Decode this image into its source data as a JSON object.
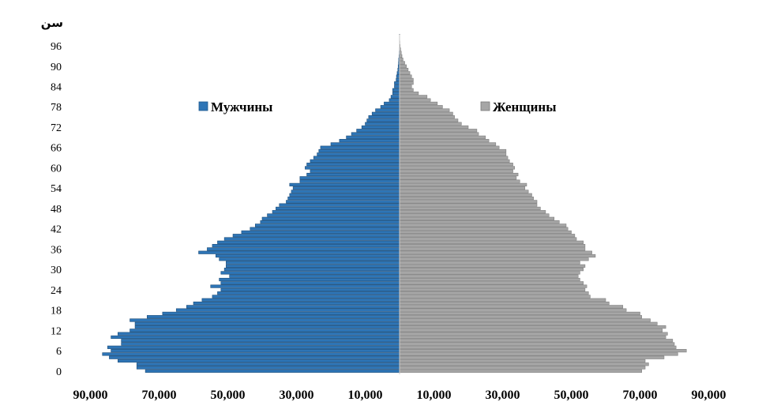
{
  "chart_data": {
    "type": "bar",
    "orientation": "horizontal-pyramid",
    "ylabel": "سن",
    "x_tick_labels": [
      "90,000",
      "70,000",
      "50,000",
      "30,000",
      "10,000",
      "10,000",
      "30,000",
      "50,000",
      "70,000",
      "90,000"
    ],
    "x_tick_values": [
      -90000,
      -70000,
      -50000,
      -30000,
      -10000,
      10000,
      30000,
      50000,
      70000,
      90000
    ],
    "y_tick_labels": [
      "0",
      "6",
      "12",
      "18",
      "24",
      "30",
      "36",
      "42",
      "48",
      "54",
      "60",
      "66",
      "72",
      "78",
      "84",
      "90",
      "96"
    ],
    "xlim": [
      -92000,
      92000
    ],
    "ylim": [
      0,
      100
    ],
    "legend_position": "upper-middle",
    "grid": false,
    "series": [
      {
        "name": "Мужчины",
        "color": "#2E75B6",
        "age": [
          0,
          1,
          2,
          3,
          4,
          5,
          6,
          7,
          8,
          9,
          10,
          11,
          12,
          13,
          14,
          15,
          16,
          17,
          18,
          19,
          20,
          21,
          22,
          23,
          24,
          25,
          26,
          27,
          28,
          29,
          30,
          31,
          32,
          33,
          34,
          35,
          36,
          37,
          38,
          39,
          40,
          41,
          42,
          43,
          44,
          45,
          46,
          47,
          48,
          49,
          50,
          51,
          52,
          53,
          54,
          55,
          56,
          57,
          58,
          59,
          60,
          61,
          62,
          63,
          64,
          65,
          66,
          67,
          68,
          69,
          70,
          71,
          72,
          73,
          74,
          75,
          76,
          77,
          78,
          79,
          80,
          81,
          82,
          83,
          84,
          85,
          86,
          87,
          88,
          89,
          90,
          91,
          92,
          93,
          94,
          95,
          96,
          97,
          98,
          99
        ],
        "values": [
          74000,
          76500,
          76500,
          82000,
          84500,
          86500,
          84000,
          85000,
          81000,
          81000,
          84000,
          82000,
          78500,
          77000,
          77000,
          78500,
          73500,
          69000,
          65000,
          62000,
          60000,
          57500,
          54500,
          53000,
          52000,
          55000,
          52000,
          52500,
          49500,
          52000,
          51000,
          50500,
          50500,
          52500,
          53500,
          58500,
          56000,
          54500,
          53000,
          51000,
          48500,
          46000,
          43500,
          42000,
          40500,
          40000,
          38500,
          37000,
          36000,
          35000,
          33000,
          32500,
          32000,
          31500,
          31000,
          32000,
          29000,
          29000,
          27000,
          26000,
          27500,
          27000,
          26000,
          25000,
          24000,
          23500,
          23000,
          20000,
          17500,
          15500,
          14000,
          12500,
          11000,
          10000,
          9500,
          9000,
          8000,
          7000,
          5500,
          4500,
          3000,
          2500,
          2000,
          2000,
          1500,
          1500,
          1000,
          900,
          700,
          500,
          400,
          300,
          250,
          150,
          100,
          60,
          30,
          20,
          10,
          5
        ],
        "values_note": "values are negative-direction (left) in the chart"
      },
      {
        "name": "Женщины",
        "color": "#A6A6A6",
        "age": [
          0,
          1,
          2,
          3,
          4,
          5,
          6,
          7,
          8,
          9,
          10,
          11,
          12,
          13,
          14,
          15,
          16,
          17,
          18,
          19,
          20,
          21,
          22,
          23,
          24,
          25,
          26,
          27,
          28,
          29,
          30,
          31,
          32,
          33,
          34,
          35,
          36,
          37,
          38,
          39,
          40,
          41,
          42,
          43,
          44,
          45,
          46,
          47,
          48,
          49,
          50,
          51,
          52,
          53,
          54,
          55,
          56,
          57,
          58,
          59,
          60,
          61,
          62,
          63,
          64,
          65,
          66,
          67,
          68,
          69,
          70,
          71,
          72,
          73,
          74,
          75,
          76,
          77,
          78,
          79,
          80,
          81,
          82,
          83,
          84,
          85,
          86,
          87,
          88,
          89,
          90,
          91,
          92,
          93,
          94,
          95,
          96,
          97,
          98,
          99
        ],
        "values": [
          70500,
          71500,
          72500,
          71500,
          77000,
          81000,
          83500,
          80500,
          80000,
          79500,
          77500,
          78000,
          76500,
          77500,
          75000,
          73000,
          70500,
          70000,
          66000,
          65000,
          61000,
          60000,
          55500,
          55000,
          54000,
          54500,
          53500,
          52500,
          52000,
          52500,
          53500,
          54000,
          52500,
          55000,
          57000,
          56000,
          54000,
          54000,
          53500,
          51500,
          51000,
          50000,
          49000,
          48500,
          46500,
          45000,
          43500,
          42500,
          41000,
          40000,
          40000,
          39000,
          38500,
          37500,
          36500,
          37000,
          35000,
          34000,
          34500,
          33000,
          33500,
          33000,
          32000,
          31500,
          31000,
          31000,
          29000,
          28000,
          26000,
          25000,
          23000,
          22500,
          20000,
          18000,
          17000,
          16000,
          15500,
          14500,
          12500,
          11000,
          9000,
          8000,
          5500,
          4000,
          3500,
          4000,
          4000,
          3500,
          3000,
          2500,
          2000,
          1500,
          1000,
          700,
          500,
          300,
          150,
          80,
          40,
          20
        ]
      }
    ]
  }
}
